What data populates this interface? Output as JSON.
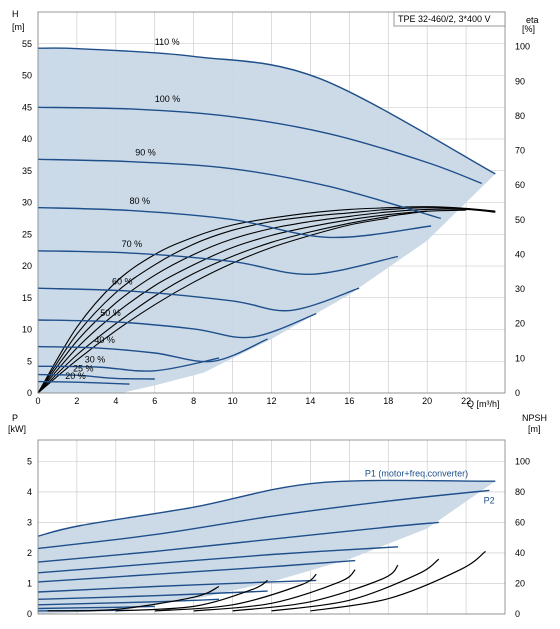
{
  "title_box": "TPE 32-460/2, 3*400 V",
  "colors": {
    "curve": "#1f4f8b",
    "area": "#c9d8e7",
    "area_light": "#e6f1fb",
    "grid": "#c6c6c6",
    "efficiency": "#000000"
  },
  "chart_data": [
    {
      "type": "line",
      "name": "head",
      "xlabel": "Q [m³/h]",
      "ylabel_left": [
        "H",
        "[m]"
      ],
      "ylabel_right": [
        "eta",
        "[%]"
      ],
      "xlim": [
        0,
        24
      ],
      "ylim_left": [
        0,
        60
      ],
      "ylim_right": [
        0,
        110
      ],
      "x_ticks": [
        0,
        2,
        4,
        6,
        8,
        10,
        12,
        14,
        16,
        18,
        20,
        22
      ],
      "x_tick_labels": [
        "0",
        "2",
        "4",
        "6",
        "8",
        "10",
        "12",
        "14",
        "16",
        "18",
        "20",
        "22"
      ],
      "y_ticks_left": [
        0,
        5,
        10,
        15,
        20,
        25,
        30,
        35,
        40,
        45,
        50,
        55
      ],
      "y_tick_labels_left": [
        "0",
        "5",
        "10",
        "15",
        "20",
        "25",
        "30",
        "35",
        "40",
        "45",
        "50",
        "55"
      ],
      "y_ticks_right": [
        0,
        10,
        20,
        30,
        40,
        50,
        60,
        70,
        80,
        90,
        100
      ],
      "y_tick_labels_right": [
        "0",
        "10",
        "20",
        "30",
        "40",
        "50",
        "60",
        "70",
        "80",
        "90",
        "100"
      ],
      "grid": true,
      "operating_area": [
        [
          0,
          54.3
        ],
        [
          2.2,
          54.2
        ],
        [
          8.0,
          53.0
        ],
        [
          14.5,
          49.5
        ],
        [
          23.5,
          34.5
        ],
        [
          20.0,
          24.0
        ],
        [
          16.0,
          15.5
        ],
        [
          12.0,
          8.5
        ],
        [
          8.5,
          3.2
        ],
        [
          6.0,
          1.2
        ],
        [
          4.3,
          0
        ],
        [
          0,
          0
        ]
      ],
      "series": [
        {
          "label": "110 %",
          "x": [
            0,
            2.2,
            8.0,
            14.5,
            23.5
          ],
          "y": [
            54.3,
            54.2,
            53.0,
            49.5,
            34.5
          ]
        },
        {
          "label": "100 %",
          "x": [
            0,
            5,
            10,
            15,
            20,
            22.8
          ],
          "y": [
            45.0,
            44.7,
            43.5,
            40.8,
            36.3,
            33.0
          ]
        },
        {
          "label": "90 %",
          "x": [
            0,
            5,
            10,
            15,
            20.7
          ],
          "y": [
            36.8,
            36.4,
            35.3,
            32.5,
            27.5
          ]
        },
        {
          "label": "80 %",
          "x": [
            0,
            5,
            10,
            15,
            20.2
          ],
          "y": [
            29.2,
            28.7,
            27.3,
            24.5,
            26.3
          ]
        },
        {
          "label": "70 %",
          "x": [
            0,
            5,
            10,
            14,
            18.5
          ],
          "y": [
            22.4,
            22.0,
            20.7,
            18.7,
            21.5
          ]
        },
        {
          "label": "60 %",
          "x": [
            0,
            5,
            10,
            13,
            16.5
          ],
          "y": [
            16.5,
            16.0,
            14.5,
            13.0,
            16.5
          ]
        },
        {
          "label": "50 %",
          "x": [
            0,
            4,
            8,
            11,
            14.3
          ],
          "y": [
            11.5,
            11.2,
            10.1,
            8.8,
            12.5
          ]
        },
        {
          "label": "40 %",
          "x": [
            0,
            3,
            6,
            9,
            11.8
          ],
          "y": [
            7.3,
            7.1,
            6.3,
            5.0,
            8.5
          ]
        },
        {
          "label": "30 %",
          "x": [
            0,
            3,
            6,
            9.3
          ],
          "y": [
            4.2,
            4.1,
            3.5,
            5.5
          ]
        },
        {
          "label": "25 %",
          "x": [
            0,
            2,
            4,
            6.0
          ],
          "y": [
            2.9,
            2.8,
            2.3,
            2.2
          ]
        },
        {
          "label": "20 %",
          "x": [
            0,
            2,
            4.7
          ],
          "y": [
            1.8,
            1.7,
            1.4
          ]
        }
      ],
      "efficiency_curves": [
        {
          "x": [
            0,
            2,
            4,
            6,
            8,
            10,
            12,
            14,
            16,
            18,
            20,
            22,
            23.5
          ],
          "y": [
            0,
            19,
            32,
            40,
            45,
            48.5,
            50.5,
            52,
            53,
            53.5,
            53.8,
            53.3,
            52.5
          ]
        },
        {
          "x": [
            0,
            2,
            4,
            6,
            8,
            10,
            12,
            14,
            16,
            18,
            20,
            22,
            23.5
          ],
          "y": [
            0,
            17,
            29,
            37,
            43,
            47,
            49.5,
            51,
            52,
            53,
            53.5,
            53.2,
            52.3
          ]
        },
        {
          "x": [
            0,
            2,
            4,
            6,
            8,
            10,
            12,
            14,
            16,
            18,
            20,
            22,
            23.5
          ],
          "y": [
            0,
            15,
            26,
            34,
            40,
            44.5,
            47.5,
            49.5,
            51,
            52.3,
            53,
            53,
            52.2
          ]
        },
        {
          "x": [
            0,
            2,
            4,
            6,
            8,
            10,
            12,
            14,
            16,
            18,
            20,
            22
          ],
          "y": [
            0,
            13,
            23,
            31,
            37,
            42,
            45.5,
            48,
            50,
            51.5,
            52.5,
            52.8
          ]
        },
        {
          "x": [
            0,
            2,
            4,
            6,
            8,
            10,
            12,
            14,
            16,
            18,
            20
          ],
          "y": [
            0,
            11,
            20,
            28,
            34.5,
            39.5,
            43.5,
            46.5,
            49,
            51,
            52.5
          ]
        },
        {
          "x": [
            0,
            2,
            4,
            6,
            8,
            10,
            12,
            14,
            16,
            18
          ],
          "y": [
            0,
            9.5,
            18,
            25.5,
            32,
            37.5,
            42,
            45.5,
            48.5,
            50.5
          ]
        }
      ]
    },
    {
      "type": "line",
      "name": "power",
      "xlabel": "Q [m³/h]",
      "ylabel_left": [
        "P",
        "[kW]"
      ],
      "ylabel_right": [
        "NPSH",
        "[m]"
      ],
      "xlim": [
        0,
        24
      ],
      "ylim_left": [
        0,
        5.7
      ],
      "ylim_right": [
        0,
        114
      ],
      "y_ticks_left": [
        0,
        1,
        2,
        3,
        4,
        5
      ],
      "y_tick_labels_left": [
        "0",
        "1",
        "2",
        "3",
        "4",
        "5"
      ],
      "y_ticks_right": [
        0,
        20,
        40,
        60,
        80,
        100
      ],
      "y_tick_labels_right": [
        "0",
        "20",
        "40",
        "60",
        "80",
        "100"
      ],
      "grid": true,
      "operating_area": [
        [
          0,
          2.55
        ],
        [
          2.2,
          2.9
        ],
        [
          8.0,
          3.5
        ],
        [
          14.5,
          4.3
        ],
        [
          23.5,
          4.35
        ],
        [
          20.0,
          2.8
        ],
        [
          16.0,
          1.8
        ],
        [
          12.0,
          1.05
        ],
        [
          8.5,
          0.55
        ],
        [
          6.0,
          0.3
        ],
        [
          4.3,
          0.12
        ],
        [
          0,
          0
        ]
      ],
      "series": [
        {
          "label": "P1 (motor+freq.converter)",
          "x": [
            0,
            2.2,
            8.0,
            14.5,
            23.5
          ],
          "y": [
            2.55,
            2.9,
            3.5,
            4.3,
            4.35
          ]
        },
        {
          "label": "P2",
          "x": [
            0,
            6,
            12,
            18,
            23.2
          ],
          "y": [
            2.15,
            2.6,
            3.2,
            3.7,
            4.05
          ]
        },
        {
          "label": "",
          "x": [
            0,
            6,
            12,
            18,
            20.6
          ],
          "y": [
            1.7,
            2.05,
            2.45,
            2.85,
            3.0
          ]
        },
        {
          "label": "",
          "x": [
            0,
            6,
            12,
            18.5
          ],
          "y": [
            1.35,
            1.65,
            1.95,
            2.2
          ]
        },
        {
          "label": "",
          "x": [
            0,
            6,
            12,
            16.3
          ],
          "y": [
            1.05,
            1.3,
            1.55,
            1.75
          ]
        },
        {
          "label": "",
          "x": [
            0,
            6,
            12,
            14.3
          ],
          "y": [
            0.72,
            0.9,
            1.05,
            1.1
          ]
        },
        {
          "label": "",
          "x": [
            0,
            6,
            11.8
          ],
          "y": [
            0.48,
            0.6,
            0.75
          ]
        },
        {
          "label": "",
          "x": [
            0,
            6,
            9.3
          ],
          "y": [
            0.3,
            0.4,
            0.48
          ]
        },
        {
          "label": "",
          "x": [
            0,
            4,
            6.0
          ],
          "y": [
            0.18,
            0.22,
            0.25
          ]
        },
        {
          "label": "",
          "x": [
            0,
            4.7
          ],
          "y": [
            0.1,
            0.12
          ]
        }
      ],
      "npsh_curves": [
        {
          "x": [
            0.5,
            4.0,
            8.0,
            9.3
          ],
          "y": [
            0.1,
            0.15,
            0.55,
            0.9
          ]
        },
        {
          "x": [
            4.0,
            8.0,
            11.0,
            11.8
          ],
          "y": [
            0.1,
            0.25,
            0.8,
            1.1
          ]
        },
        {
          "x": [
            6.0,
            10.0,
            13.5,
            14.3
          ],
          "y": [
            0.1,
            0.3,
            0.95,
            1.3
          ]
        },
        {
          "x": [
            8.0,
            12.0,
            15.5,
            16.3
          ],
          "y": [
            0.1,
            0.35,
            1.05,
            1.45
          ]
        },
        {
          "x": [
            10.0,
            14.0,
            17.7,
            18.5
          ],
          "y": [
            0.1,
            0.4,
            1.15,
            1.6
          ]
        },
        {
          "x": [
            12.0,
            16.0,
            19.5,
            20.6
          ],
          "y": [
            0.1,
            0.45,
            1.3,
            1.8
          ]
        },
        {
          "x": [
            14.0,
            18.0,
            21.7,
            23.0
          ],
          "y": [
            0.1,
            0.5,
            1.45,
            2.05
          ]
        }
      ]
    }
  ]
}
